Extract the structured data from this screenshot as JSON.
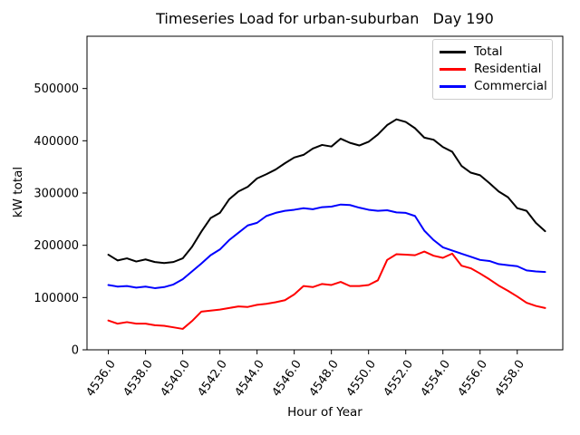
{
  "figure": {
    "title": "Timeseries Load for urban-suburban   Day 190",
    "background": "#ffffff"
  },
  "chart_data": {
    "type": "line",
    "title": "Timeseries Load for urban-suburban   Day 190",
    "xlabel": "Hour of Year",
    "ylabel": "kW total",
    "xlim": [
      4534.85,
      4560.45
    ],
    "ylim": [
      0,
      600000
    ],
    "grid": false,
    "xtick_values": [
      4536,
      4538,
      4540,
      4542,
      4544,
      4546,
      4548,
      4550,
      4552,
      4554,
      4556,
      4558
    ],
    "xtick_labels": [
      "4536.0",
      "4538.0",
      "4540.0",
      "4542.0",
      "4544.0",
      "4546.0",
      "4548.0",
      "4550.0",
      "4552.0",
      "4554.0",
      "4556.0",
      "4558.0"
    ],
    "ytick_values": [
      0,
      100000,
      200000,
      300000,
      400000,
      500000
    ],
    "ytick_labels": [
      "0",
      "100000",
      "200000",
      "300000",
      "400000",
      "500000"
    ],
    "legend": {
      "position": "upper right",
      "border_color": "#cccccc"
    },
    "x": [
      4536.0,
      4536.5,
      4537.0,
      4537.5,
      4538.0,
      4538.5,
      4539.0,
      4539.5,
      4540.0,
      4540.5,
      4541.0,
      4541.5,
      4542.0,
      4542.5,
      4543.0,
      4543.5,
      4544.0,
      4544.5,
      4545.0,
      4545.5,
      4546.0,
      4546.5,
      4547.0,
      4547.5,
      4548.0,
      4548.5,
      4549.0,
      4549.5,
      4550.0,
      4550.5,
      4551.0,
      4551.5,
      4552.0,
      4552.5,
      4553.0,
      4553.5,
      4554.0,
      4554.5,
      4555.0,
      4555.5,
      4556.0,
      4556.5,
      4557.0,
      4557.5,
      4558.0,
      4558.5,
      4559.0,
      4559.5
    ],
    "series": [
      {
        "name": "Total",
        "color": "#000000",
        "values": [
          182000,
          171000,
          175000,
          169000,
          173000,
          168000,
          166000,
          168000,
          175000,
          197000,
          226000,
          252000,
          262000,
          288000,
          303000,
          312000,
          328000,
          336000,
          345000,
          357000,
          368000,
          373000,
          385000,
          392000,
          389000,
          404000,
          396000,
          391000,
          398000,
          412000,
          430000,
          441000,
          436000,
          424000,
          406000,
          402000,
          388000,
          379000,
          352000,
          339000,
          334000,
          319000,
          303000,
          292000,
          271000,
          266000,
          243000,
          227000
        ]
      },
      {
        "name": "Residential",
        "color": "#ff0000",
        "values": [
          56000,
          50000,
          53000,
          50000,
          50000,
          47000,
          46000,
          43000,
          40000,
          55000,
          73000,
          75000,
          77000,
          80000,
          83000,
          82000,
          86000,
          88000,
          91000,
          95000,
          106000,
          122000,
          120000,
          126000,
          124000,
          130000,
          122000,
          122000,
          124000,
          133000,
          172000,
          183000,
          182000,
          181000,
          188000,
          180000,
          176000,
          184000,
          161000,
          156000,
          146000,
          135000,
          123000,
          113000,
          102000,
          90000,
          84000,
          80000
        ]
      },
      {
        "name": "Commercial",
        "color": "#0000ff",
        "values": [
          124000,
          121000,
          122000,
          119000,
          121000,
          118000,
          120000,
          125000,
          135000,
          150000,
          165000,
          181000,
          192000,
          210000,
          224000,
          238000,
          243000,
          256000,
          262000,
          266000,
          268000,
          271000,
          269000,
          273000,
          274000,
          278000,
          277000,
          272000,
          268000,
          266000,
          267000,
          263000,
          262000,
          256000,
          228000,
          210000,
          196000,
          190000,
          184000,
          178000,
          172000,
          170000,
          164000,
          162000,
          160000,
          152000,
          150000,
          149000
        ]
      }
    ]
  }
}
